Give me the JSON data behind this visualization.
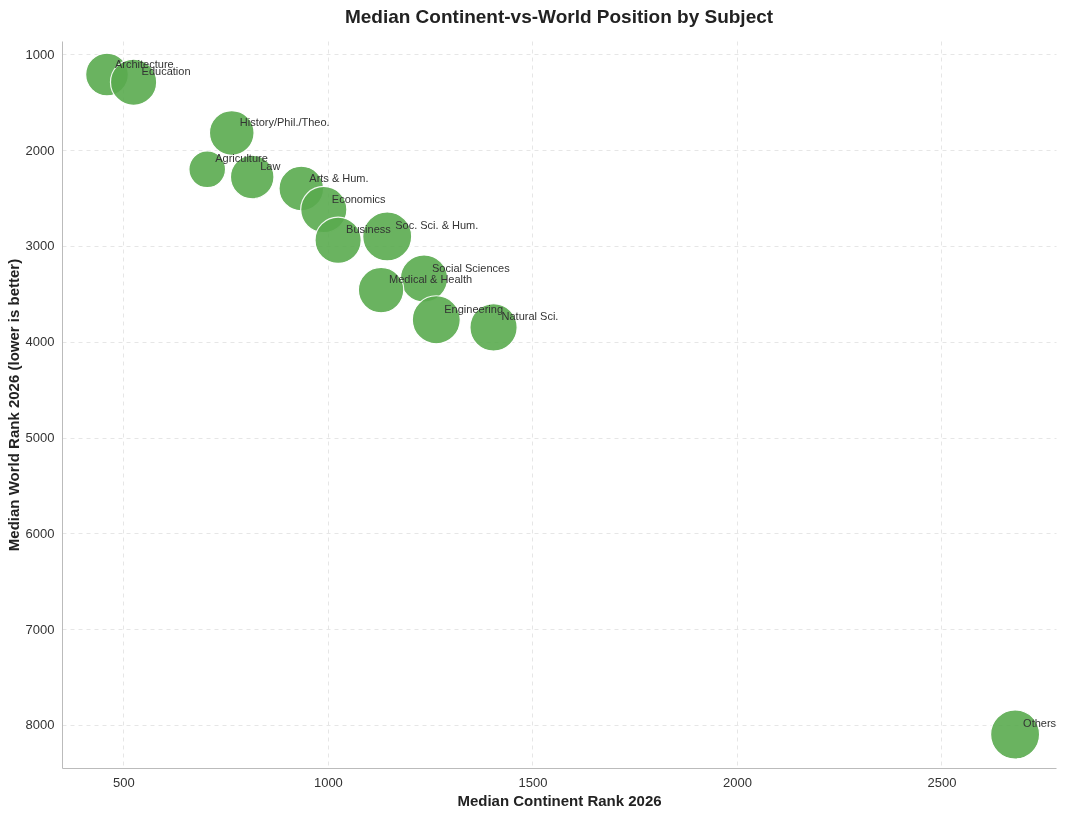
{
  "chart_data": {
    "type": "bubble",
    "title": "Median Continent-vs-World Position by Subject",
    "xlabel": "Median Continent Rank 2026",
    "ylabel": "Median World Rank 2026 (lower is better)",
    "x": [
      460,
      525,
      765,
      705,
      815,
      935,
      990,
      1025,
      1145,
      1235,
      1130,
      1265,
      1405,
      2680
    ],
    "values": [
      1210,
      1290,
      1820,
      2200,
      2280,
      2400,
      2620,
      2940,
      2900,
      3340,
      3460,
      3770,
      3850,
      8100
    ],
    "sizes": [
      0.76,
      0.89,
      0.83,
      0.56,
      0.79,
      0.83,
      0.89,
      0.89,
      1,
      0.93,
      0.86,
      0.96,
      0.93,
      1
    ],
    "color": "#5aab4f",
    "annotations": [
      {
        "text": "Architecture",
        "x": 460,
        "y": 1210
      },
      {
        "text": "Education",
        "x": 525,
        "y": 1290
      },
      {
        "text": "History/Phil./Theo.",
        "x": 765,
        "y": 1820
      },
      {
        "text": "Agriculture",
        "x": 705,
        "y": 2200
      },
      {
        "text": "Law",
        "x": 815,
        "y": 2280
      },
      {
        "text": "Arts & Hum.",
        "x": 935,
        "y": 2400
      },
      {
        "text": "Economics",
        "x": 990,
        "y": 2620
      },
      {
        "text": "Business",
        "x": 1025,
        "y": 2940
      },
      {
        "text": "Soc. Sci. & Hum.",
        "x": 1145,
        "y": 2900
      },
      {
        "text": "Social Sciences",
        "x": 1235,
        "y": 3340
      },
      {
        "text": "Medical & Health",
        "x": 1130,
        "y": 3460
      },
      {
        "text": "Engineering",
        "x": 1265,
        "y": 3770
      },
      {
        "text": "Natural Sci.",
        "x": 1405,
        "y": 3850
      },
      {
        "text": "Others",
        "x": 2680,
        "y": 8100
      }
    ],
    "xlim": [
      350,
      2780
    ],
    "xticks": [
      500,
      1000,
      1500,
      2000,
      2500
    ],
    "ylim": [
      8450,
      860
    ],
    "yticks": [
      1000,
      2000,
      3000,
      4000,
      5000,
      6000,
      7000,
      8000
    ],
    "grid": true,
    "legend": false
  }
}
